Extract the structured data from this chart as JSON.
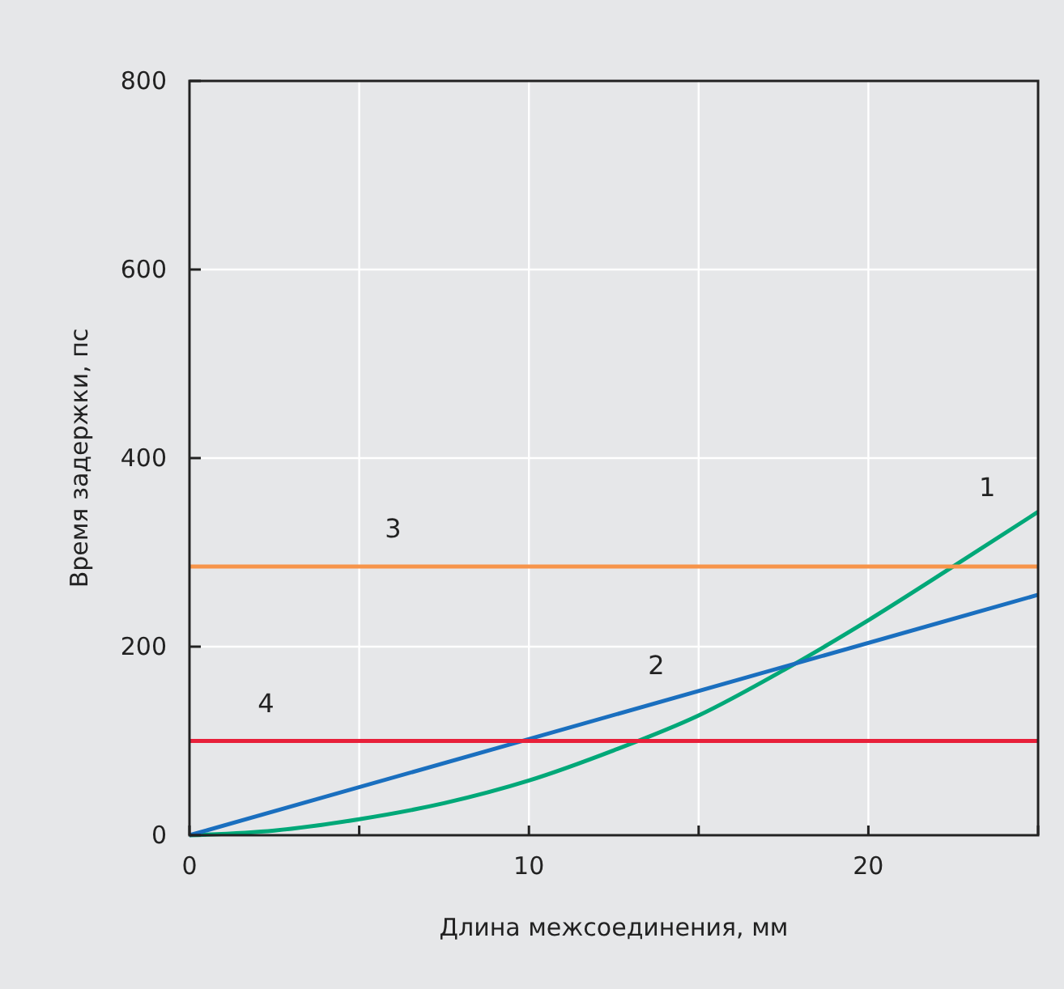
{
  "chart_data": {
    "type": "line",
    "xlabel": "Длина межсоединения, мм",
    "ylabel": "Время задержки, пс",
    "xlim": [
      0,
      25
    ],
    "xticks": [
      0,
      {
        "value": 5,
        "label": null
      },
      10,
      {
        "value": 15,
        "label": null
      },
      20,
      {
        "value": 25,
        "label": null
      }
    ],
    "ylim": [
      0,
      800
    ],
    "yticks": [
      0,
      200,
      400,
      600,
      800
    ],
    "grid": true,
    "marker": "none",
    "line_style": "solid",
    "series": [
      {
        "name": "1",
        "color": "#00a878",
        "x": [
          0,
          2.5,
          5,
          7.5,
          10,
          12.5,
          15,
          17.5,
          20,
          22.5,
          25
        ],
        "values": [
          0,
          5,
          17,
          34,
          58,
          90,
          127,
          175,
          228,
          285,
          343
        ]
      },
      {
        "name": "2",
        "color": "#1a6fbf",
        "x": [
          0,
          25
        ],
        "values": [
          0,
          255
        ]
      },
      {
        "name": "3",
        "color": "#f7944a",
        "x": [
          0,
          25
        ],
        "values": [
          285,
          285
        ]
      },
      {
        "name": "4",
        "color": "#e8203a",
        "x": [
          0,
          25
        ],
        "values": [
          100,
          100
        ]
      }
    ]
  }
}
